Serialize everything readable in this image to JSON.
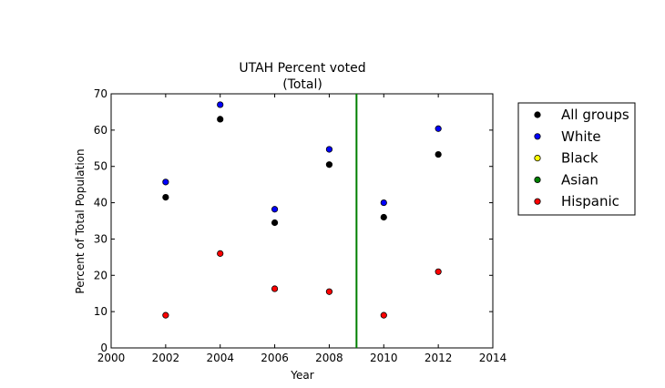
{
  "chart_data": {
    "type": "scatter",
    "title": "UTAH Percent voted",
    "subtitle": "(Total)",
    "xlabel": "Year",
    "ylabel": "Percent of Total Population",
    "xlim": [
      2000,
      2014
    ],
    "ylim": [
      0,
      70
    ],
    "x_ticks": [
      "2000",
      "2002",
      "2004",
      "2006",
      "2008",
      "2010",
      "2012",
      "2014"
    ],
    "y_ticks": [
      "0",
      "10",
      "20",
      "30",
      "40",
      "50",
      "60",
      "70"
    ],
    "grid": false,
    "legend_placement": "outside-right-top",
    "vertical_line": {
      "x": 2009,
      "color": "#008000"
    },
    "series": [
      {
        "name": "All groups",
        "color": "#000000",
        "x": [
          2002,
          2004,
          2006,
          2008,
          2010,
          2012
        ],
        "y": [
          41.5,
          63.0,
          34.5,
          50.5,
          36.0,
          53.3
        ]
      },
      {
        "name": "White",
        "color": "#0000ff",
        "x": [
          2002,
          2004,
          2006,
          2008,
          2010,
          2012
        ],
        "y": [
          45.7,
          67.0,
          38.2,
          54.7,
          40.0,
          60.4
        ]
      },
      {
        "name": "Black",
        "color": "#ffff00",
        "x": [],
        "y": []
      },
      {
        "name": "Asian",
        "color": "#008000",
        "x": [],
        "y": []
      },
      {
        "name": "Hispanic",
        "color": "#ff0000",
        "x": [
          2002,
          2004,
          2006,
          2008,
          2010,
          2012
        ],
        "y": [
          9.0,
          26.0,
          16.3,
          15.5,
          9.0,
          21.0
        ]
      }
    ]
  }
}
